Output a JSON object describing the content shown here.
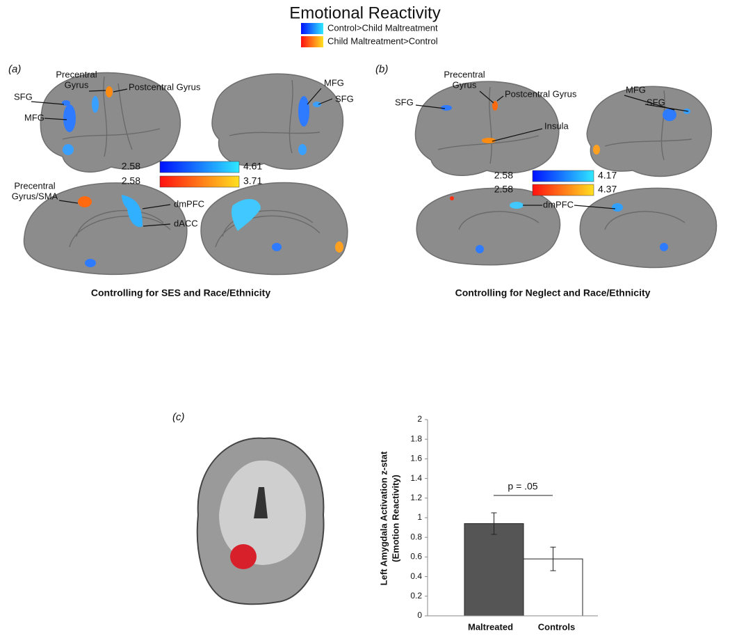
{
  "title": "Emotional Reactivity",
  "legend": [
    "Control>Child Maltreatment",
    "Child Maltreatment>Control"
  ],
  "panels": [
    {
      "letter": "(a)",
      "caption": "Controlling for SES and Race/Ethnicity",
      "colorbars": [
        [
          2.58,
          4.61
        ],
        [
          2.58,
          3.71
        ]
      ],
      "labels": [
        "SFG",
        "MFG",
        [
          "Precentral",
          "Gyrus"
        ],
        "Postcentral Gyrus",
        "MFG",
        "SFG",
        [
          "Precentral",
          "Gyrus/SMA"
        ],
        "dmPFC",
        "dACC"
      ]
    },
    {
      "letter": "(b)",
      "caption": "Controlling for Neglect and Race/Ethnicity",
      "colorbars": [
        [
          2.58,
          4.17
        ],
        [
          2.58,
          4.37
        ]
      ],
      "labels": [
        "SFG",
        [
          "Precentral",
          "Gyrus"
        ],
        "Postcentral Gyrus",
        "Insula",
        "MFG",
        "SFG",
        "dmPFC"
      ]
    }
  ],
  "panel_c": {
    "letter": "(c)"
  },
  "chart_data": {
    "type": "bar",
    "ylabel": [
      "Left Amygdala Activation z-stat",
      "(Emotion Reactivity)"
    ],
    "categories": [
      "Maltreated",
      "Controls"
    ],
    "values": [
      0.94,
      0.58
    ],
    "errors": [
      0.11,
      0.12
    ],
    "colors": [
      "#555555",
      "#ffffff"
    ],
    "ylim": [
      0,
      2
    ],
    "yticks": [
      0,
      0.2,
      0.4,
      0.6,
      0.8,
      1,
      1.2,
      1.4,
      1.6,
      1.8,
      2
    ],
    "annotation": "p = .05"
  }
}
